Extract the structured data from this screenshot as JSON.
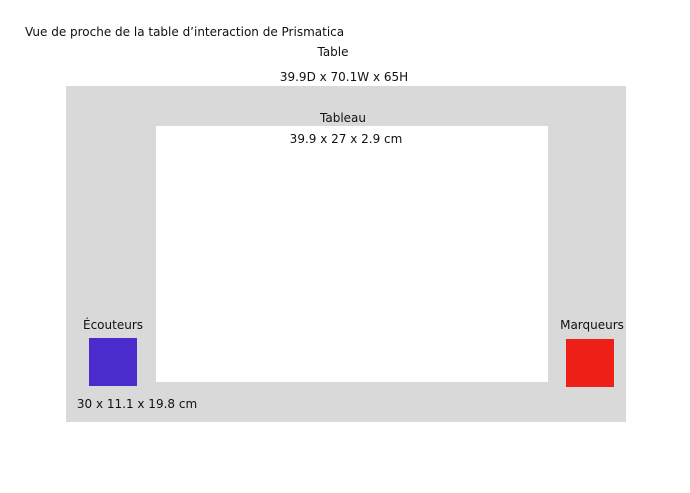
{
  "title": "Vue de proche de la table d’interaction de Prismatica",
  "table": {
    "label": "Table",
    "dimensions": "39.9D x 70.1W x 65H",
    "color": "#d9d9d9"
  },
  "tableau": {
    "label": "Tableau",
    "dimensions": "39.9 x 27 x 2.9 cm",
    "color": "#ffffff"
  },
  "ecouteurs": {
    "label": "Écouteurs",
    "dimensions": "30 x 11.1 x 19.8 cm",
    "color": "#4a2bcc"
  },
  "marqueurs": {
    "label": "Marqueurs",
    "color": "#ee1f17"
  }
}
